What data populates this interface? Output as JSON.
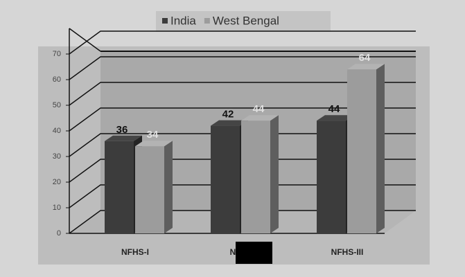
{
  "chart_data": {
    "type": "bar3d",
    "categories": [
      "NFHS-I",
      "NFHS",
      "NFHS-III"
    ],
    "series": [
      {
        "name": "India",
        "color": "#3c3c3c",
        "values": [
          36,
          42,
          44
        ]
      },
      {
        "name": "West Bengal",
        "color": "#9c9c9c",
        "values": [
          34,
          44,
          64
        ]
      }
    ],
    "ylim": [
      0,
      80
    ],
    "yticks": [
      0,
      10,
      20,
      30,
      40,
      50,
      60,
      70
    ],
    "grid": true,
    "legend": "top"
  }
}
